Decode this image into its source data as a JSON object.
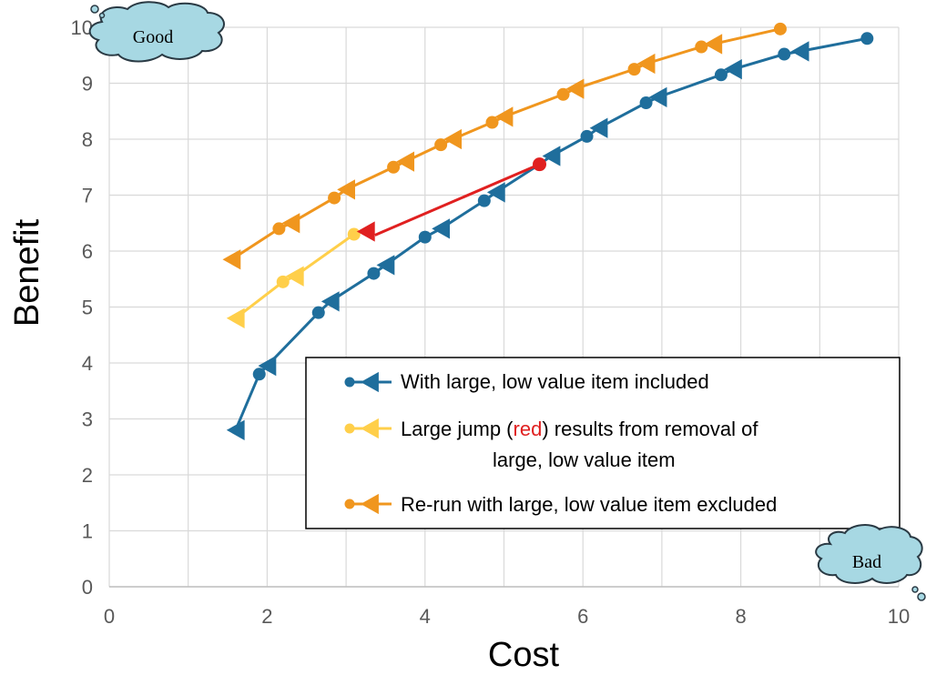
{
  "chart_data": {
    "type": "line",
    "xlabel": "Cost",
    "ylabel": "Benefit",
    "xlim": [
      0,
      10
    ],
    "ylim": [
      0,
      10
    ],
    "x_ticks": [
      "0",
      "2",
      "4",
      "6",
      "8",
      "10"
    ],
    "y_ticks": [
      "0",
      "1",
      "2",
      "3",
      "4",
      "5",
      "6",
      "7",
      "8",
      "9",
      "10"
    ],
    "grid": true,
    "legend_position": "lower-right",
    "legend": [
      {
        "text": "With large, low value item included",
        "color": "#1f6e9c"
      },
      {
        "text_before": "Large jump (",
        "text_red": "red",
        "text_after": ") results from removal of",
        "text_line2": "large, low value item",
        "color": "#ffcf4a"
      },
      {
        "text": "Re-run with large, low value item excluded",
        "color": "#f0961e"
      }
    ],
    "series": [
      {
        "color": "#1f6e9c",
        "points": [
          [
            1.6,
            2.8
          ],
          [
            1.9,
            3.8
          ],
          [
            2.0,
            3.95
          ],
          [
            2.65,
            4.9
          ],
          [
            2.8,
            5.1
          ],
          [
            3.35,
            5.6
          ],
          [
            3.5,
            5.75
          ],
          [
            4.0,
            6.25
          ],
          [
            4.2,
            6.4
          ],
          [
            4.75,
            6.9
          ],
          [
            4.9,
            7.05
          ],
          [
            5.45,
            7.55
          ],
          [
            5.6,
            7.7
          ],
          [
            6.05,
            8.05
          ],
          [
            6.2,
            8.2
          ],
          [
            6.8,
            8.65
          ],
          [
            6.95,
            8.75
          ],
          [
            7.75,
            9.15
          ],
          [
            7.9,
            9.25
          ],
          [
            8.55,
            9.52
          ],
          [
            8.75,
            9.57
          ],
          [
            9.6,
            9.8
          ]
        ],
        "markers": [
          "tri",
          "dot",
          "tri",
          "dot",
          "tri",
          "dot",
          "tri",
          "dot",
          "tri",
          "dot",
          "tri",
          "dot",
          "tri",
          "dot",
          "tri",
          "dot",
          "tri",
          "dot",
          "tri",
          "dot",
          "tri",
          "dot"
        ]
      },
      {
        "color": "#ffcf4a",
        "points": [
          [
            1.6,
            4.8
          ],
          [
            2.2,
            5.45
          ],
          [
            2.35,
            5.55
          ],
          [
            3.1,
            6.3
          ]
        ],
        "markers": [
          "tri",
          "dot",
          "tri",
          "dot"
        ]
      },
      {
        "color": "#f0961e",
        "points": [
          [
            1.55,
            5.85
          ],
          [
            2.15,
            6.4
          ],
          [
            2.3,
            6.5
          ],
          [
            2.85,
            6.95
          ],
          [
            3.0,
            7.1
          ],
          [
            3.6,
            7.5
          ],
          [
            3.75,
            7.6
          ],
          [
            4.2,
            7.9
          ],
          [
            4.35,
            8.0
          ],
          [
            4.85,
            8.3
          ],
          [
            5.0,
            8.4
          ],
          [
            5.75,
            8.8
          ],
          [
            5.9,
            8.9
          ],
          [
            6.65,
            9.25
          ],
          [
            6.8,
            9.35
          ],
          [
            7.5,
            9.65
          ],
          [
            7.65,
            9.7
          ],
          [
            8.5,
            9.97
          ]
        ],
        "markers": [
          "tri",
          "dot",
          "tri",
          "dot",
          "tri",
          "dot",
          "tri",
          "dot",
          "tri",
          "dot",
          "tri",
          "dot",
          "tri",
          "dot",
          "tri",
          "dot",
          "tri",
          "dot"
        ]
      }
    ],
    "jump_arrow": {
      "color": "#e02020",
      "from": [
        5.45,
        7.55
      ],
      "to": [
        3.25,
        6.35
      ]
    },
    "annotations": {
      "good": "Good",
      "bad": "Bad"
    }
  }
}
